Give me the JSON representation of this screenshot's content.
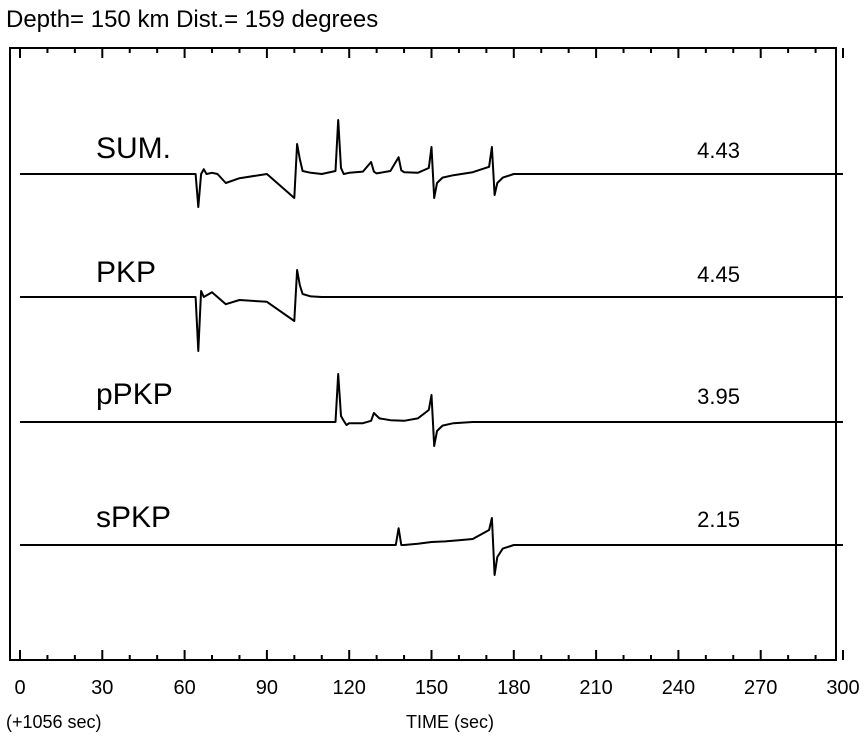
{
  "header": {
    "title": "Depth= 150 km  Dist.= 159 degrees"
  },
  "chart_data": {
    "type": "line",
    "title": "Depth= 150 km  Dist.= 159 degrees",
    "xlabel": "TIME (sec)",
    "axis_note": "(+1056 sec)",
    "xlim": [
      0,
      300
    ],
    "xticks": [
      0,
      30,
      60,
      90,
      120,
      150,
      180,
      210,
      240,
      270,
      300
    ],
    "grid": false,
    "series": [
      {
        "name": "SUM.",
        "value": "4.43",
        "x": [
          0,
          64,
          65,
          66,
          67,
          68,
          70,
          72,
          75,
          80,
          90,
          100,
          101,
          102,
          103,
          106,
          110,
          115,
          116,
          117,
          118,
          120,
          125,
          128,
          129,
          130,
          135,
          138,
          139,
          140,
          145,
          149,
          150,
          151,
          152,
          154,
          158,
          165,
          171,
          172,
          173,
          174,
          176,
          180,
          300
        ],
        "y": [
          0,
          0,
          -0.55,
          0,
          0.08,
          0,
          0.02,
          0,
          -0.15,
          -0.07,
          0,
          -0.4,
          0.5,
          0.25,
          0.05,
          0.02,
          0,
          0.05,
          0.9,
          0.1,
          0,
          0.02,
          0.04,
          0.2,
          0.04,
          0.01,
          0.05,
          0.28,
          0.06,
          0.03,
          0.02,
          0.1,
          0.45,
          -0.4,
          -0.15,
          -0.06,
          -0.02,
          0.03,
          0.12,
          0.45,
          -0.35,
          -0.15,
          -0.06,
          0,
          0
        ]
      },
      {
        "name": "PKP",
        "value": "4.45",
        "x": [
          0,
          64,
          65,
          66,
          67,
          70,
          75,
          80,
          90,
          100,
          101,
          102,
          103,
          106,
          110,
          300
        ],
        "y": [
          0,
          0,
          -0.9,
          0.1,
          0,
          0.08,
          -0.12,
          -0.05,
          -0.08,
          -0.4,
          0.45,
          0.2,
          0.05,
          0.01,
          0,
          0
        ]
      },
      {
        "name": "pPKP",
        "value": "3.95",
        "x": [
          0,
          115,
          116,
          117,
          118,
          119,
          120,
          125,
          128,
          129,
          131,
          135,
          140,
          145,
          149,
          150,
          151,
          152,
          154,
          158,
          165,
          300
        ],
        "y": [
          0,
          0,
          0.8,
          0.1,
          0.02,
          -0.05,
          -0.02,
          -0.02,
          0.02,
          0.15,
          0.06,
          0.03,
          0.02,
          0.06,
          0.2,
          0.45,
          -0.4,
          -0.15,
          -0.06,
          -0.02,
          0,
          0
        ]
      },
      {
        "name": "sPKP",
        "value": "2.15",
        "x": [
          0,
          137,
          138,
          139,
          140,
          145,
          150,
          155,
          160,
          165,
          171,
          172,
          173,
          174,
          176,
          180,
          300
        ],
        "y": [
          0,
          0,
          0.28,
          0,
          0,
          0.02,
          0.05,
          0.06,
          0.08,
          0.1,
          0.25,
          0.45,
          -0.5,
          -0.2,
          -0.06,
          0,
          0
        ]
      }
    ]
  }
}
